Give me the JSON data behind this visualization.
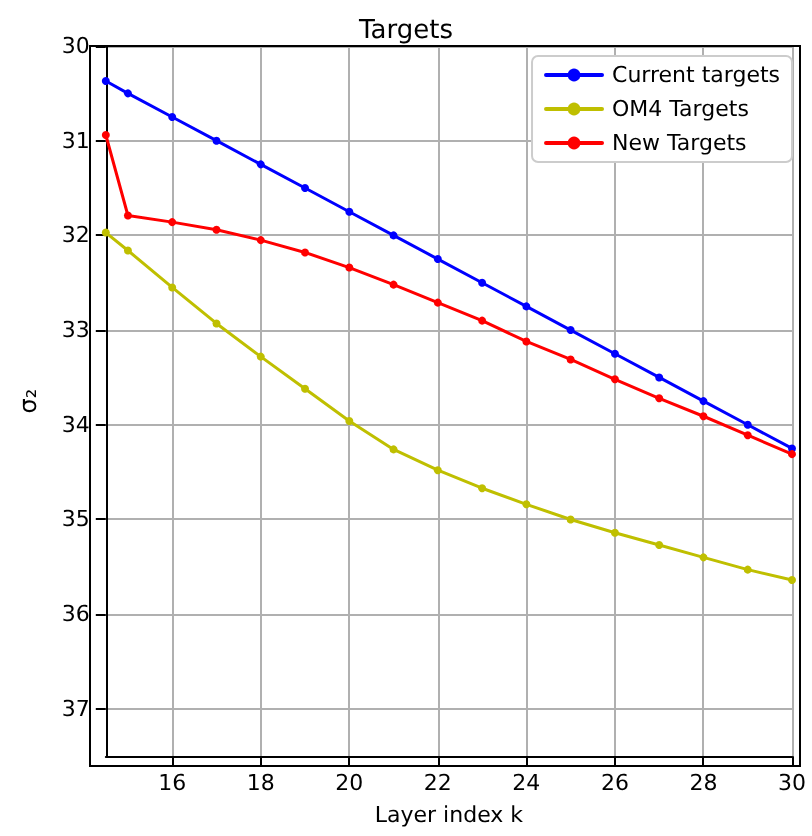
{
  "chart_data": {
    "type": "line",
    "title": "Targets",
    "xlabel": "Layer index k",
    "ylabel": "σ₂",
    "xlim": [
      14.5,
      30
    ],
    "xticks": [
      16,
      18,
      20,
      22,
      24,
      26,
      28,
      30
    ],
    "ylim": [
      37.5,
      30
    ],
    "yticks": [
      30,
      31,
      32,
      33,
      34,
      35,
      36,
      37
    ],
    "grid": true,
    "legend": "top right",
    "marker": "circle",
    "line_style": "solid",
    "series": [
      {
        "name": "Current targets",
        "color": "#0000ff",
        "x": [
          14.5,
          15,
          16,
          17,
          18,
          19,
          20,
          21,
          22,
          23,
          24,
          25,
          26,
          27,
          28,
          29,
          30
        ],
        "values": [
          30.37,
          30.5,
          30.75,
          31.0,
          31.25,
          31.5,
          31.75,
          32.0,
          32.25,
          32.5,
          32.75,
          33.0,
          33.25,
          33.5,
          33.75,
          34.0,
          34.25
        ]
      },
      {
        "name": "OM4 Targets",
        "color": "#bfbf00",
        "x": [
          14.5,
          15,
          16,
          17,
          18,
          19,
          20,
          21,
          22,
          23,
          24,
          25,
          26,
          27,
          28,
          29,
          30
        ],
        "values": [
          31.97,
          32.16,
          32.55,
          32.93,
          33.28,
          33.62,
          33.96,
          34.26,
          34.48,
          34.67,
          34.84,
          35.0,
          35.14,
          35.27,
          35.4,
          35.53,
          35.64
        ]
      },
      {
        "name": "New Targets",
        "color": "#ff0000",
        "x": [
          14.5,
          15,
          16,
          17,
          18,
          19,
          20,
          21,
          22,
          23,
          24,
          25,
          26,
          27,
          28,
          29,
          30
        ],
        "values": [
          30.94,
          31.79,
          31.86,
          31.94,
          32.05,
          32.18,
          32.34,
          32.52,
          32.71,
          32.9,
          33.12,
          33.31,
          33.52,
          33.72,
          33.91,
          34.11,
          34.31
        ]
      }
    ]
  }
}
